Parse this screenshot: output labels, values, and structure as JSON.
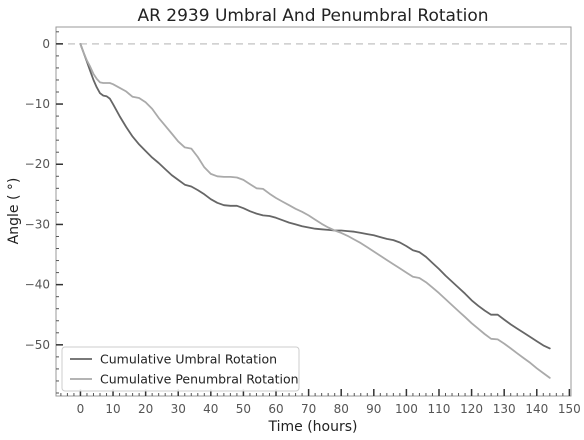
{
  "chart_data": {
    "type": "line",
    "title": "AR 2939 Umbral And Penumbral Rotation",
    "xlabel": "Time (hours)",
    "ylabel": "Angle ( °)",
    "xlim": [
      -7.5,
      150.5
    ],
    "ylim": [
      -58.5,
      2.8
    ],
    "xticks": [
      0,
      10,
      20,
      30,
      40,
      50,
      60,
      70,
      80,
      90,
      100,
      110,
      120,
      130,
      140,
      150
    ],
    "yticks": [
      0,
      -10,
      -20,
      -30,
      -40,
      -50
    ],
    "grid": false,
    "reference_line": {
      "y": 0,
      "style": "dashed",
      "color": "#cccccc"
    },
    "legend": {
      "position": "lower-left"
    },
    "series": [
      {
        "name": "Cumulative Umbral Rotation",
        "color": "#666666",
        "x": [
          0,
          1,
          2,
          3,
          4,
          5,
          6,
          7,
          8,
          9,
          10,
          12,
          14,
          16,
          18,
          20,
          22,
          24,
          26,
          28,
          30,
          32,
          34,
          36,
          38,
          40,
          42,
          44,
          46,
          48,
          50,
          52,
          54,
          56,
          58,
          60,
          62,
          64,
          66,
          68,
          70,
          72,
          74,
          76,
          78,
          80,
          82,
          84,
          86,
          88,
          90,
          92,
          94,
          96,
          98,
          100,
          102,
          104,
          106,
          108,
          110,
          112,
          114,
          116,
          118,
          120,
          122,
          124,
          126,
          128,
          130,
          132,
          134,
          136,
          138,
          140,
          142,
          144
        ],
        "y": [
          0,
          -1.5,
          -3.0,
          -4.5,
          -6.0,
          -7.2,
          -8.2,
          -8.6,
          -8.7,
          -9.1,
          -10.0,
          -12.0,
          -13.8,
          -15.4,
          -16.7,
          -17.8,
          -18.9,
          -19.8,
          -20.8,
          -21.8,
          -22.6,
          -23.4,
          -23.7,
          -24.3,
          -25.0,
          -25.8,
          -26.4,
          -26.8,
          -26.9,
          -26.9,
          -27.3,
          -27.8,
          -28.2,
          -28.5,
          -28.6,
          -28.9,
          -29.3,
          -29.7,
          -30.0,
          -30.3,
          -30.5,
          -30.7,
          -30.8,
          -30.9,
          -31.0,
          -31.0,
          -31.1,
          -31.2,
          -31.4,
          -31.6,
          -31.8,
          -32.1,
          -32.4,
          -32.6,
          -33.0,
          -33.6,
          -34.3,
          -34.6,
          -35.4,
          -36.4,
          -37.4,
          -38.5,
          -39.5,
          -40.5,
          -41.5,
          -42.6,
          -43.5,
          -44.3,
          -45.0,
          -45.0,
          -45.8,
          -46.6,
          -47.3,
          -48.0,
          -48.7,
          -49.4,
          -50.1,
          -50.6
        ]
      },
      {
        "name": "Cumulative Penumbral Rotation",
        "color": "#aaaaaa",
        "x": [
          0,
          1,
          2,
          3,
          4,
          5,
          6,
          7,
          8,
          9,
          10,
          12,
          14,
          16,
          18,
          20,
          22,
          24,
          26,
          28,
          30,
          32,
          34,
          36,
          38,
          40,
          42,
          44,
          46,
          48,
          50,
          52,
          54,
          56,
          58,
          60,
          62,
          64,
          66,
          68,
          70,
          72,
          74,
          76,
          78,
          80,
          82,
          84,
          86,
          88,
          90,
          92,
          94,
          96,
          98,
          100,
          102,
          104,
          106,
          108,
          110,
          112,
          114,
          116,
          118,
          120,
          122,
          124,
          126,
          128,
          130,
          132,
          134,
          136,
          138,
          140,
          142,
          144
        ],
        "y": [
          0,
          -1.5,
          -2.8,
          -3.8,
          -5.0,
          -5.8,
          -6.4,
          -6.5,
          -6.5,
          -6.5,
          -6.7,
          -7.3,
          -7.9,
          -8.8,
          -9.0,
          -9.7,
          -10.8,
          -12.3,
          -13.6,
          -14.9,
          -16.2,
          -17.2,
          -17.4,
          -18.8,
          -20.5,
          -21.6,
          -22.0,
          -22.1,
          -22.1,
          -22.2,
          -22.6,
          -23.3,
          -24.0,
          -24.1,
          -24.9,
          -25.6,
          -26.2,
          -26.8,
          -27.4,
          -27.9,
          -28.5,
          -29.2,
          -29.9,
          -30.5,
          -31.0,
          -31.4,
          -31.9,
          -32.5,
          -33.1,
          -33.8,
          -34.5,
          -35.2,
          -35.9,
          -36.6,
          -37.3,
          -38.0,
          -38.7,
          -38.9,
          -39.6,
          -40.5,
          -41.4,
          -42.4,
          -43.4,
          -44.4,
          -45.4,
          -46.4,
          -47.3,
          -48.2,
          -49.0,
          -49.1,
          -49.8,
          -50.6,
          -51.4,
          -52.2,
          -53.0,
          -53.9,
          -54.7,
          -55.5
        ]
      }
    ]
  }
}
